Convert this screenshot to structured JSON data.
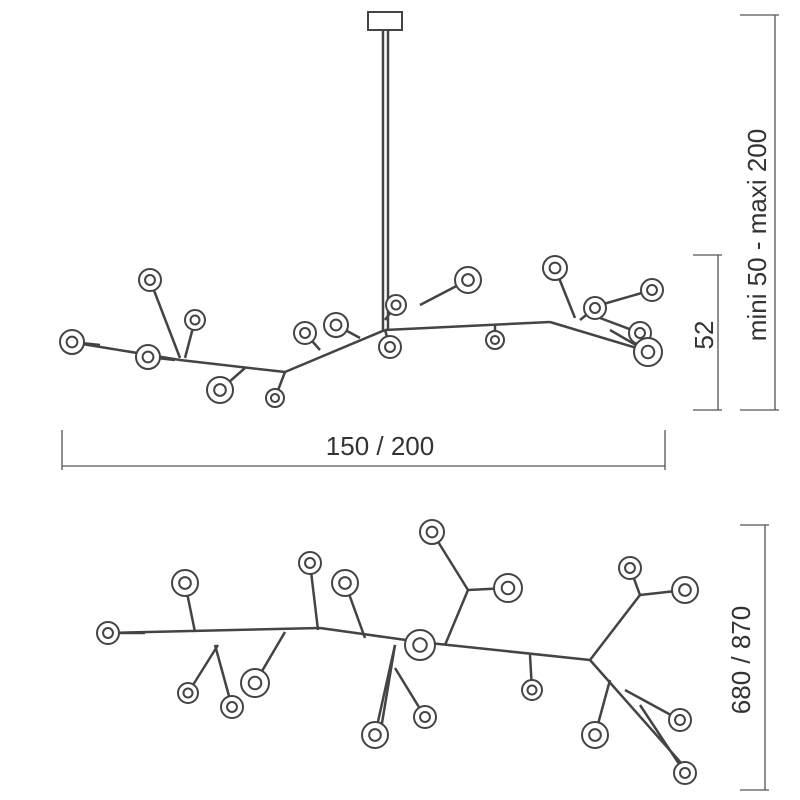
{
  "dimensions": {
    "front_width": "150 / 200",
    "front_height": "52",
    "suspension": "mini 50 - maxi 200",
    "top_depth": "680 / 870"
  }
}
